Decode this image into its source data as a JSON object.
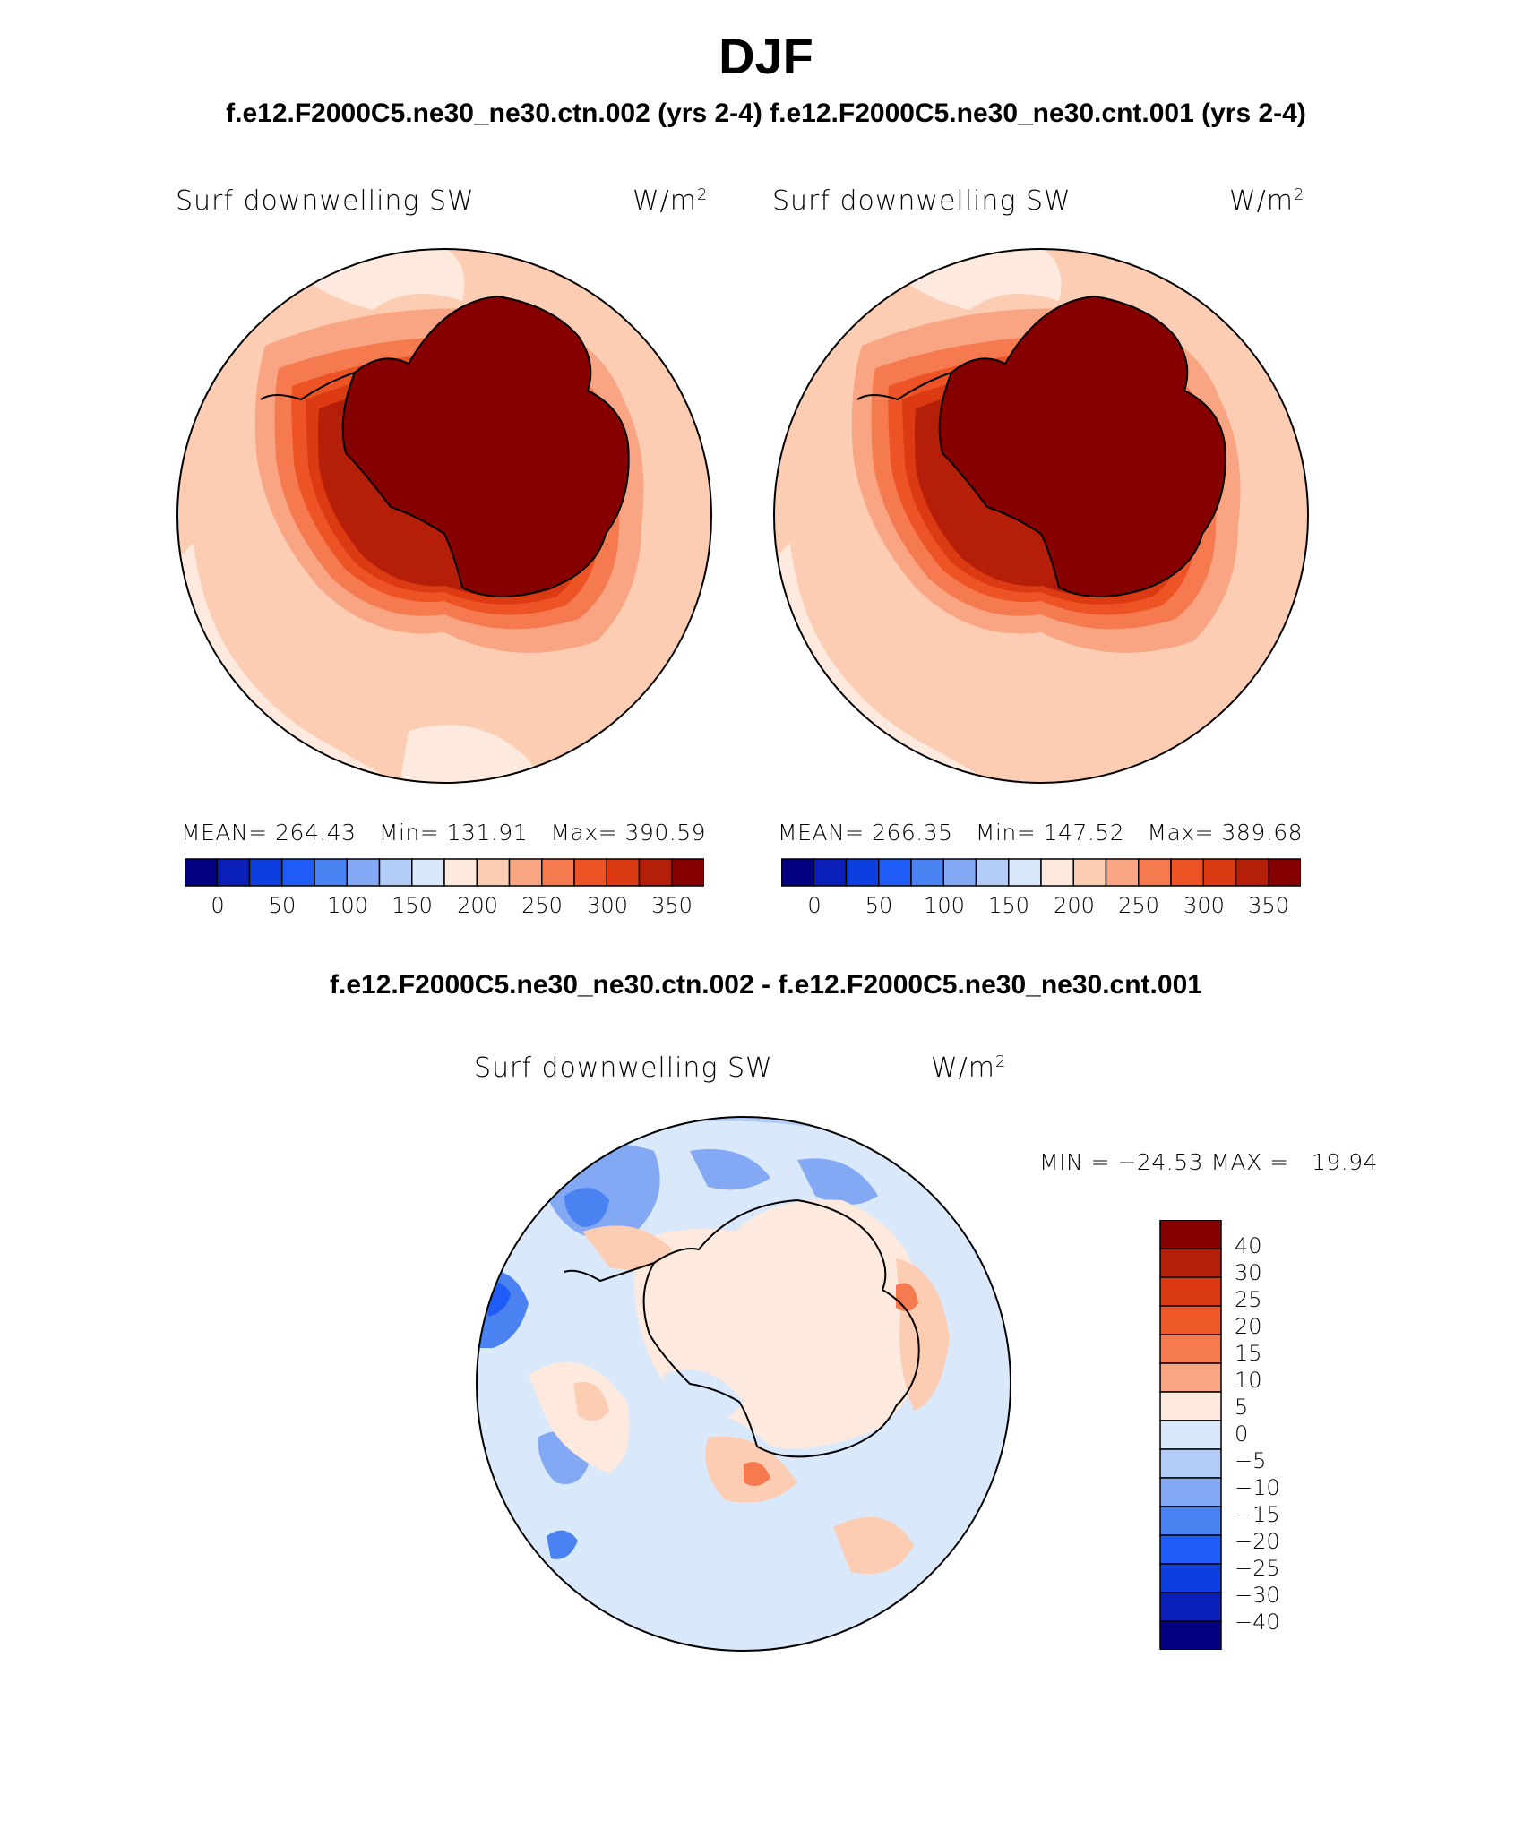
{
  "title": "DJF",
  "top_caption": "f.e12.F2000C5.ne30_ne30.ctn.002 (yrs 2-4) f.e12.F2000C5.ne30_ne30.cnt.001 (yrs 2-4)",
  "diff_caption": "f.e12.F2000C5.ne30_ne30.ctn.002 - f.e12.F2000C5.ne30_ne30.cnt.001",
  "panels": [
    {
      "variable": "Surf downwelling SW",
      "units": "W/m",
      "units_sup": "2",
      "stats": "MEAN= 264.43   Min= 131.91   Max= 390.59"
    },
    {
      "variable": "Surf downwelling SW",
      "units": "W/m",
      "units_sup": "2",
      "stats": "MEAN= 266.35   Min= 147.52   Max= 389.68"
    }
  ],
  "diff_panel": {
    "variable": "Surf downwelling SW",
    "units": "W/m",
    "units_sup": "2",
    "minmax": "MIN = −24.53 MAX =   19.94"
  },
  "colorbar_top": {
    "colors": [
      "#000080",
      "#0a1fb8",
      "#0c3ee0",
      "#1f5cf7",
      "#4a82f2",
      "#83a9f5",
      "#b3cbf7",
      "#d9e8fa",
      "#fde9dd",
      "#fccdb3",
      "#f9a483",
      "#f57a4f",
      "#ed5324",
      "#db3a12",
      "#b51f0a",
      "#870000"
    ],
    "tick_labels": [
      "0",
      "50",
      "100",
      "150",
      "200",
      "250",
      "300",
      "350"
    ]
  },
  "colorbar_diff": {
    "colors_top_to_bottom": [
      "#870000",
      "#b51f0a",
      "#db3a12",
      "#f05a28",
      "#f57a4f",
      "#f9a483",
      "#fde9dd",
      "#d9e8fa",
      "#b3cbf7",
      "#83a9f5",
      "#4a82f2",
      "#1f5cf7",
      "#0c3ee0",
      "#0a1fb8",
      "#000080"
    ],
    "tick_labels": [
      "40",
      "30",
      "25",
      "20",
      "15",
      "10",
      "5",
      "0",
      "−5",
      "−10",
      "−15",
      "−20",
      "−25",
      "−30",
      "−40"
    ]
  },
  "chart_data": [
    {
      "type": "heatmap",
      "title": "Surf downwelling SW",
      "units": "W/m2",
      "projection": "south-polar-stereographic",
      "levels": [
        0,
        25,
        50,
        75,
        100,
        125,
        150,
        175,
        200,
        225,
        250,
        275,
        300,
        325,
        350
      ],
      "mean": 264.43,
      "min": 131.91,
      "max": 390.59
    },
    {
      "type": "heatmap",
      "title": "Surf downwelling SW",
      "units": "W/m2",
      "projection": "south-polar-stereographic",
      "levels": [
        0,
        25,
        50,
        75,
        100,
        125,
        150,
        175,
        200,
        225,
        250,
        275,
        300,
        325,
        350
      ],
      "mean": 266.35,
      "min": 147.52,
      "max": 389.68
    },
    {
      "type": "heatmap",
      "title": "Surf downwelling SW",
      "units": "W/m2",
      "projection": "south-polar-stereographic",
      "levels": [
        -40,
        -30,
        -25,
        -20,
        -15,
        -10,
        -5,
        0,
        5,
        10,
        15,
        20,
        25,
        30,
        40
      ],
      "min": -24.53,
      "max": 19.94
    }
  ]
}
